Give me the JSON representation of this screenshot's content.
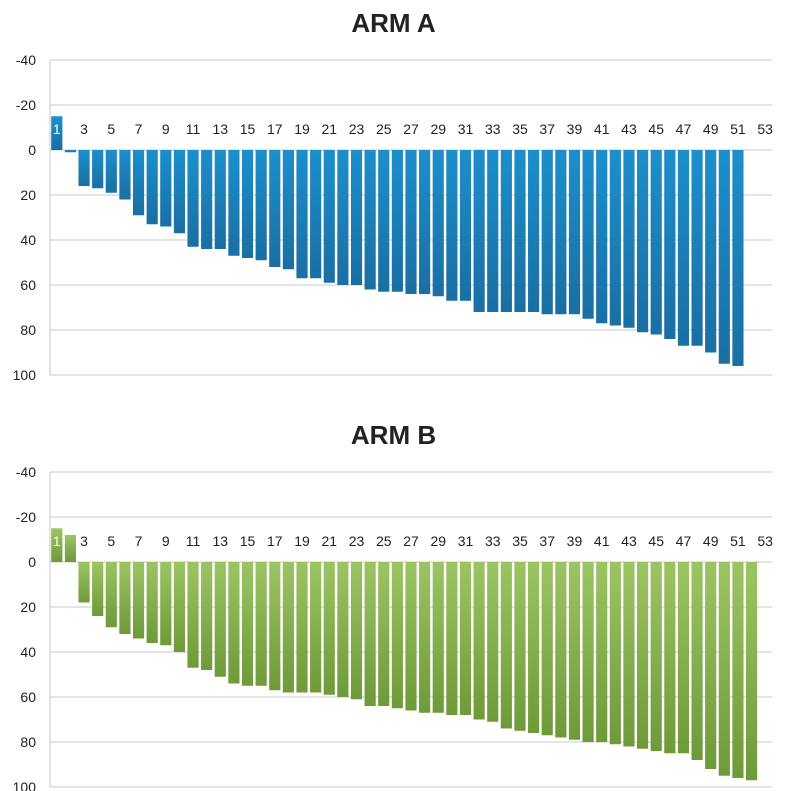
{
  "chart_data": [
    {
      "type": "bar",
      "title": "ARM A",
      "color": "#1c8fcc",
      "color_dark": "#1a6fa3",
      "ylim": [
        -40,
        100
      ],
      "y_ticks": [
        "-40",
        "-20",
        "0",
        "20",
        "40",
        "60",
        "80",
        "100"
      ],
      "x_ticks": [
        "1",
        "3",
        "5",
        "7",
        "9",
        "11",
        "13",
        "15",
        "17",
        "19",
        "21",
        "23",
        "25",
        "27",
        "29",
        "31",
        "33",
        "35",
        "37",
        "39",
        "41",
        "43",
        "45",
        "47",
        "49",
        "51",
        "53"
      ],
      "grid": true,
      "legend": "none",
      "categories": [
        1,
        2,
        3,
        4,
        5,
        6,
        7,
        8,
        9,
        10,
        11,
        12,
        13,
        14,
        15,
        16,
        17,
        18,
        19,
        20,
        21,
        22,
        23,
        24,
        25,
        26,
        27,
        28,
        29,
        30,
        31,
        32,
        33,
        34,
        35,
        36,
        37,
        38,
        39,
        40,
        41,
        42,
        43,
        44,
        45,
        46,
        47,
        48,
        49,
        50,
        51
      ],
      "values": [
        -15,
        1,
        16,
        17,
        19,
        22,
        29,
        33,
        34,
        37,
        43,
        44,
        44,
        47,
        48,
        49,
        52,
        53,
        57,
        57,
        59,
        60,
        60,
        62,
        63,
        63,
        64,
        64,
        65,
        67,
        67,
        72,
        72,
        72,
        72,
        72,
        73,
        73,
        73,
        75,
        77,
        78,
        79,
        81,
        82,
        84,
        87,
        87,
        90,
        95,
        96
      ]
    },
    {
      "type": "bar",
      "title": "ARM B",
      "color": "#9cc463",
      "color_dark": "#6f9a3a",
      "ylim": [
        -40,
        100
      ],
      "y_ticks": [
        "-40",
        "-20",
        "0",
        "20",
        "40",
        "60",
        "80",
        "100"
      ],
      "x_ticks": [
        "1",
        "3",
        "5",
        "7",
        "9",
        "11",
        "13",
        "15",
        "17",
        "19",
        "21",
        "23",
        "25",
        "27",
        "29",
        "31",
        "33",
        "35",
        "37",
        "39",
        "41",
        "43",
        "45",
        "47",
        "49",
        "51",
        "53"
      ],
      "grid": true,
      "legend": "none",
      "categories": [
        1,
        2,
        3,
        4,
        5,
        6,
        7,
        8,
        9,
        10,
        11,
        12,
        13,
        14,
        15,
        16,
        17,
        18,
        19,
        20,
        21,
        22,
        23,
        24,
        25,
        26,
        27,
        28,
        29,
        30,
        31,
        32,
        33,
        34,
        35,
        36,
        37,
        38,
        39,
        40,
        41,
        42,
        43,
        44,
        45,
        46,
        47,
        48,
        49,
        50,
        51,
        52
      ],
      "values": [
        -15,
        -12,
        18,
        24,
        29,
        32,
        34,
        36,
        37,
        40,
        47,
        48,
        51,
        54,
        55,
        55,
        57,
        58,
        58,
        58,
        59,
        60,
        61,
        64,
        64,
        65,
        66,
        67,
        67,
        68,
        68,
        70,
        71,
        74,
        75,
        76,
        77,
        78,
        79,
        80,
        80,
        81,
        82,
        83,
        84,
        85,
        85,
        88,
        92,
        95,
        96,
        97
      ]
    }
  ]
}
